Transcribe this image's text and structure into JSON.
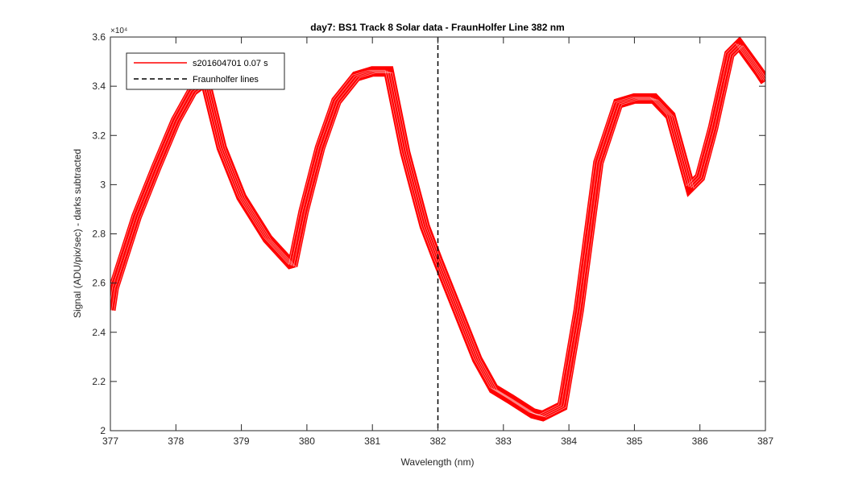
{
  "chart_data": {
    "type": "line",
    "title": "day7: BS1  Track 8 Solar data - FraunHolfer Line 382 nm",
    "xlabel": "Wavelength (nm)",
    "ylabel": "Signal (ADU/pix/sec) - darks subtracted",
    "xlim": [
      377,
      387
    ],
    "ylim": [
      20000,
      36000
    ],
    "x_ticks": [
      377,
      378,
      379,
      380,
      381,
      382,
      383,
      384,
      385,
      386,
      387
    ],
    "x_tick_labels": [
      "377",
      "378",
      "379",
      "380",
      "381",
      "382",
      "383",
      "384",
      "385",
      "386",
      "387"
    ],
    "y_ticks": [
      20000,
      22000,
      24000,
      26000,
      28000,
      30000,
      32000,
      34000,
      36000
    ],
    "y_tick_labels": [
      "2",
      "2.2",
      "2.4",
      "2.6",
      "2.8",
      "3",
      "3.2",
      "3.4",
      "3.6"
    ],
    "y_exponent_label": "×10⁴",
    "grid": false,
    "legend_position": "top-left",
    "series": [
      {
        "name": "s201604701 0.07 s",
        "color": "#ff0000",
        "x": [
          377.0,
          377.05,
          377.4,
          377.7,
          378.0,
          378.25,
          378.45,
          378.7,
          379.0,
          379.4,
          379.78,
          379.95,
          380.2,
          380.45,
          380.75,
          381.0,
          381.25,
          381.5,
          381.8,
          382.0,
          382.3,
          382.6,
          382.85,
          383.1,
          383.45,
          383.6,
          383.9,
          384.15,
          384.45,
          384.75,
          385.0,
          385.3,
          385.55,
          385.85,
          386.0,
          386.2,
          386.45,
          386.6,
          386.9,
          387.0
        ],
        "values": [
          24900,
          25800,
          28700,
          30700,
          32600,
          33800,
          34200,
          31500,
          29500,
          27800,
          26700,
          28900,
          31500,
          33400,
          34400,
          34600,
          34600,
          31300,
          28300,
          26900,
          24900,
          22900,
          21700,
          21300,
          20700,
          20600,
          21000,
          24900,
          30900,
          33300,
          33500,
          33500,
          32800,
          29900,
          30300,
          32300,
          35300,
          35700,
          34600,
          34200
        ]
      }
    ],
    "vlines": [
      {
        "name": "Fraunholfer lines",
        "x": 382.0,
        "color": "#000000",
        "style": "dashed"
      }
    ]
  }
}
